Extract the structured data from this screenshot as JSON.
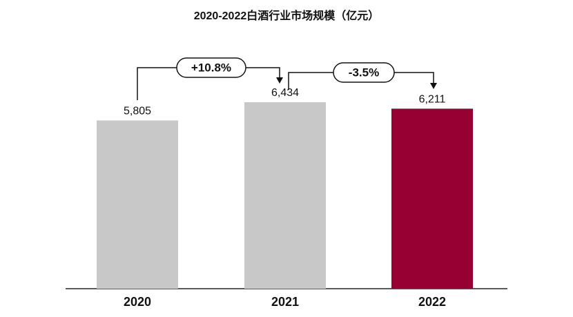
{
  "chart_data": {
    "type": "bar",
    "title": "2020-2022白酒行业市场规模（亿元）",
    "categories": [
      "2020",
      "2021",
      "2022"
    ],
    "values": [
      5805,
      6434,
      6211
    ],
    "value_labels": [
      "5,805",
      "6,434",
      "6,211"
    ],
    "colors": [
      "#c8c8c8",
      "#c8c8c8",
      "#960032"
    ],
    "annotations": [
      "+10.8%",
      "-3.5%"
    ]
  }
}
